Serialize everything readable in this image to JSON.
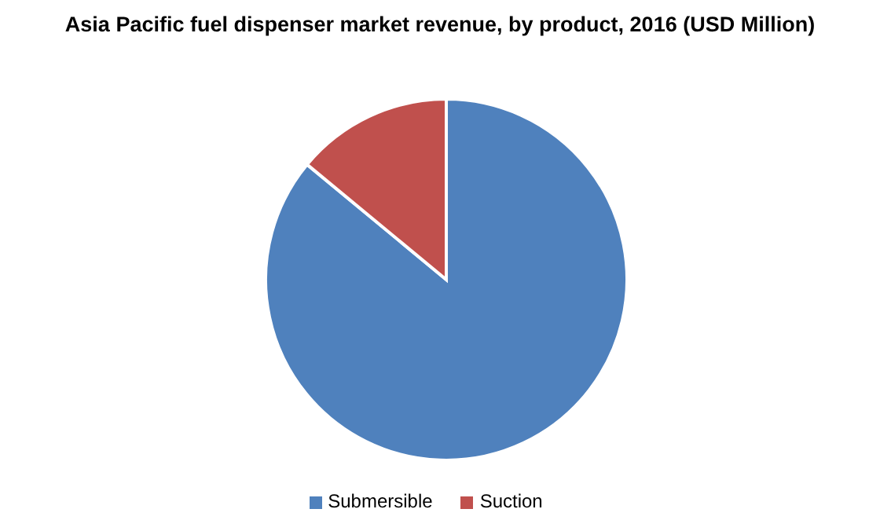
{
  "chart_data": {
    "type": "pie",
    "title": "Asia Pacific fuel dispenser market revenue, by product, 2016 (USD Million)",
    "categories": [
      "Submersible",
      "Suction"
    ],
    "values": [
      86,
      14
    ],
    "colors": [
      "#4f81bd",
      "#c0504d"
    ],
    "legend": "bottom"
  }
}
